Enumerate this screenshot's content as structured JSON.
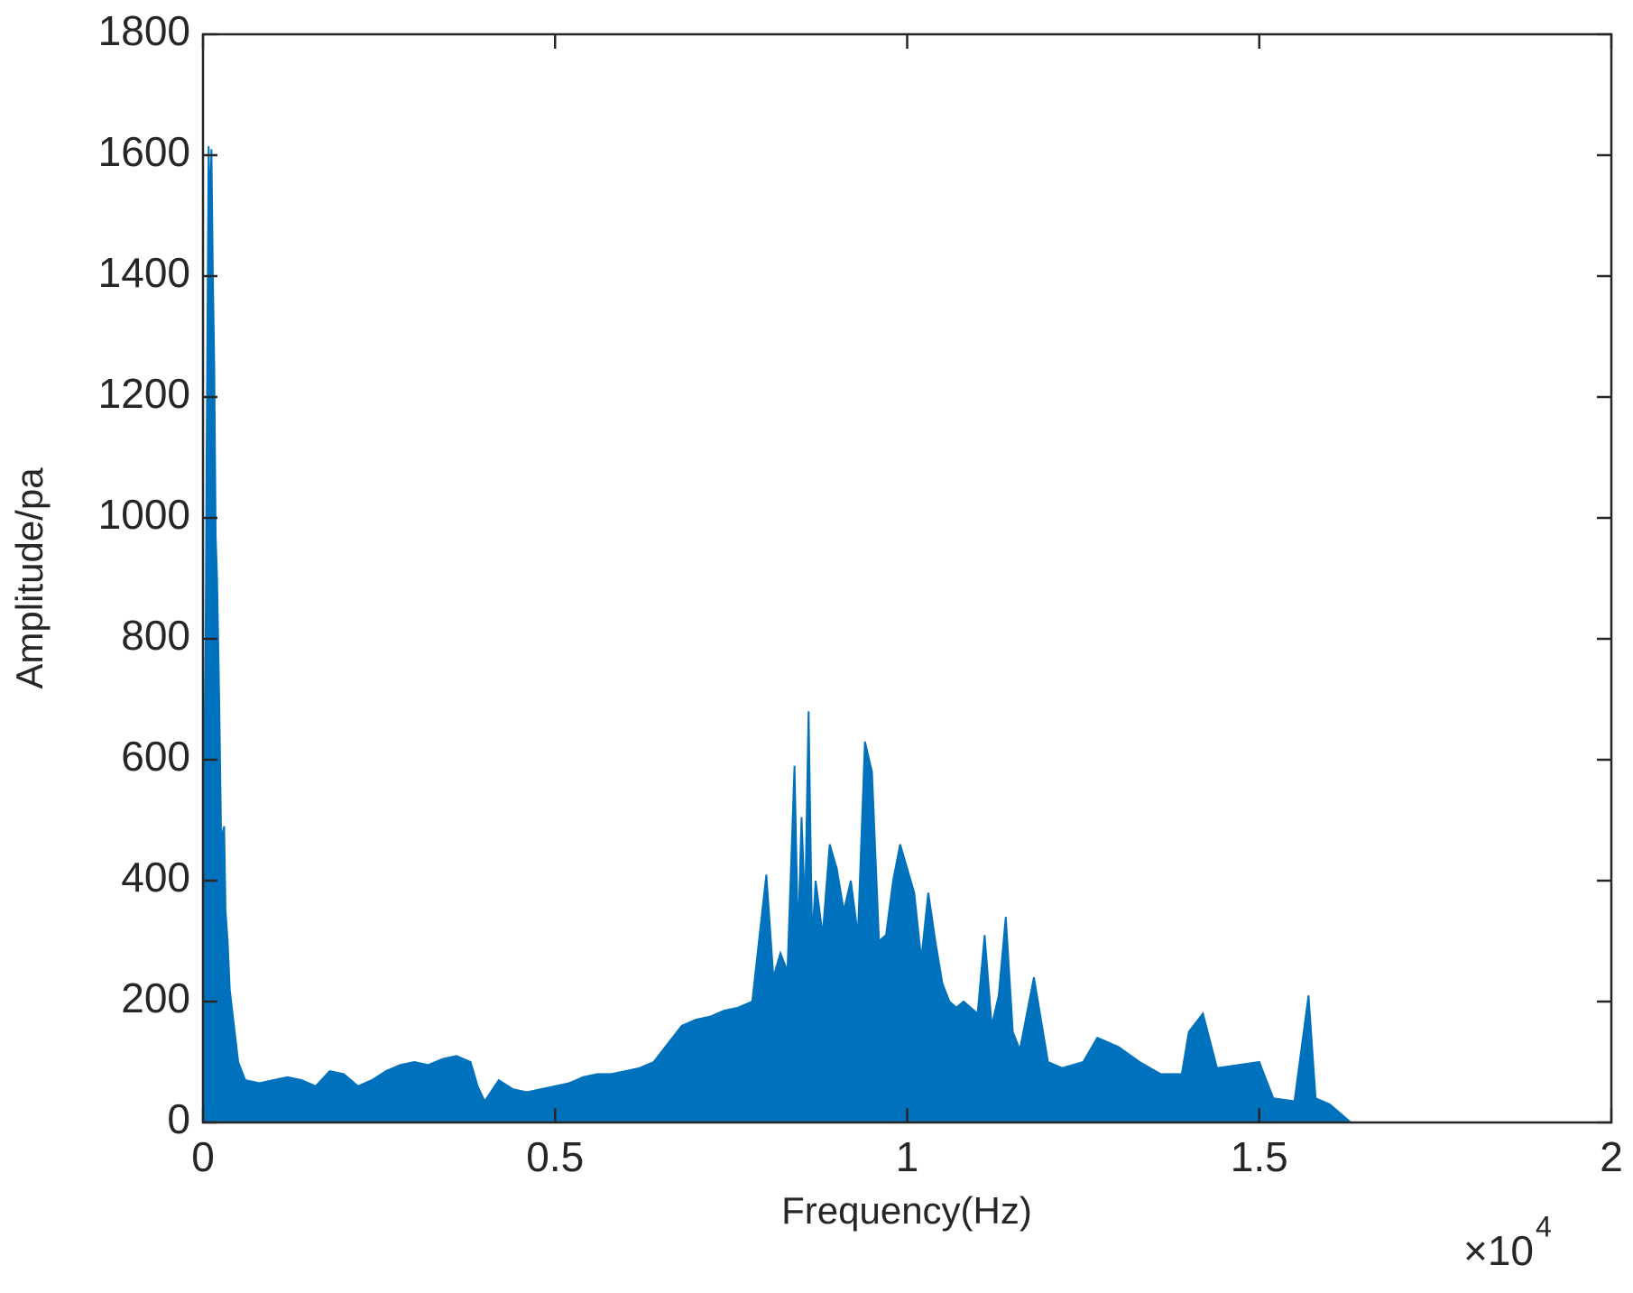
{
  "chart_data": {
    "type": "line",
    "fill": true,
    "xlabel": "Frequency(Hz)",
    "ylabel": "Amplitude/pa",
    "x_scale_text": "×10",
    "x_scale_exponent": "4",
    "color": "#0072bd",
    "xlim": [
      0,
      2
    ],
    "ylim": [
      0,
      1800
    ],
    "xticks": [
      0,
      0.5,
      1,
      1.5,
      2
    ],
    "yticks": [
      0,
      200,
      400,
      600,
      800,
      1000,
      1200,
      1400,
      1600,
      1800
    ],
    "x": [
      0,
      0.002,
      0.005,
      0.008,
      0.01,
      0.012,
      0.014,
      0.016,
      0.018,
      0.02,
      0.023,
      0.026,
      0.028,
      0.03,
      0.032,
      0.035,
      0.038,
      0.042,
      0.05,
      0.06,
      0.08,
      0.1,
      0.12,
      0.14,
      0.16,
      0.18,
      0.2,
      0.22,
      0.24,
      0.26,
      0.28,
      0.3,
      0.32,
      0.34,
      0.36,
      0.38,
      0.39,
      0.4,
      0.42,
      0.44,
      0.46,
      0.48,
      0.5,
      0.52,
      0.54,
      0.56,
      0.58,
      0.6,
      0.62,
      0.64,
      0.66,
      0.68,
      0.7,
      0.72,
      0.74,
      0.76,
      0.78,
      0.8,
      0.81,
      0.82,
      0.83,
      0.84,
      0.845,
      0.85,
      0.855,
      0.86,
      0.865,
      0.87,
      0.88,
      0.89,
      0.9,
      0.91,
      0.92,
      0.93,
      0.94,
      0.95,
      0.96,
      0.97,
      0.98,
      0.99,
      1.0,
      1.01,
      1.02,
      1.03,
      1.04,
      1.05,
      1.06,
      1.07,
      1.08,
      1.1,
      1.11,
      1.12,
      1.13,
      1.14,
      1.15,
      1.16,
      1.18,
      1.2,
      1.22,
      1.25,
      1.27,
      1.3,
      1.33,
      1.36,
      1.39,
      1.4,
      1.42,
      1.44,
      1.47,
      1.5,
      1.52,
      1.55,
      1.57,
      1.58,
      1.6,
      1.62,
      1.63,
      2.0
    ],
    "values": [
      850,
      380,
      1080,
      1615,
      1500,
      1610,
      1400,
      1250,
      970,
      900,
      700,
      450,
      480,
      490,
      350,
      300,
      220,
      180,
      100,
      70,
      65,
      70,
      75,
      70,
      60,
      85,
      80,
      60,
      70,
      85,
      95,
      100,
      95,
      105,
      110,
      100,
      60,
      35,
      70,
      55,
      50,
      55,
      60,
      65,
      75,
      80,
      80,
      85,
      90,
      100,
      130,
      160,
      170,
      175,
      185,
      190,
      200,
      410,
      240,
      280,
      250,
      590,
      300,
      505,
      350,
      680,
      300,
      400,
      310,
      460,
      420,
      350,
      400,
      310,
      630,
      580,
      300,
      310,
      400,
      460,
      420,
      380,
      270,
      380,
      300,
      230,
      200,
      190,
      200,
      180,
      310,
      160,
      210,
      340,
      150,
      120,
      240,
      100,
      90,
      100,
      140,
      125,
      100,
      80,
      80,
      150,
      180,
      90,
      95,
      100,
      40,
      35,
      210,
      40,
      30,
      10,
      0,
      0
    ]
  }
}
